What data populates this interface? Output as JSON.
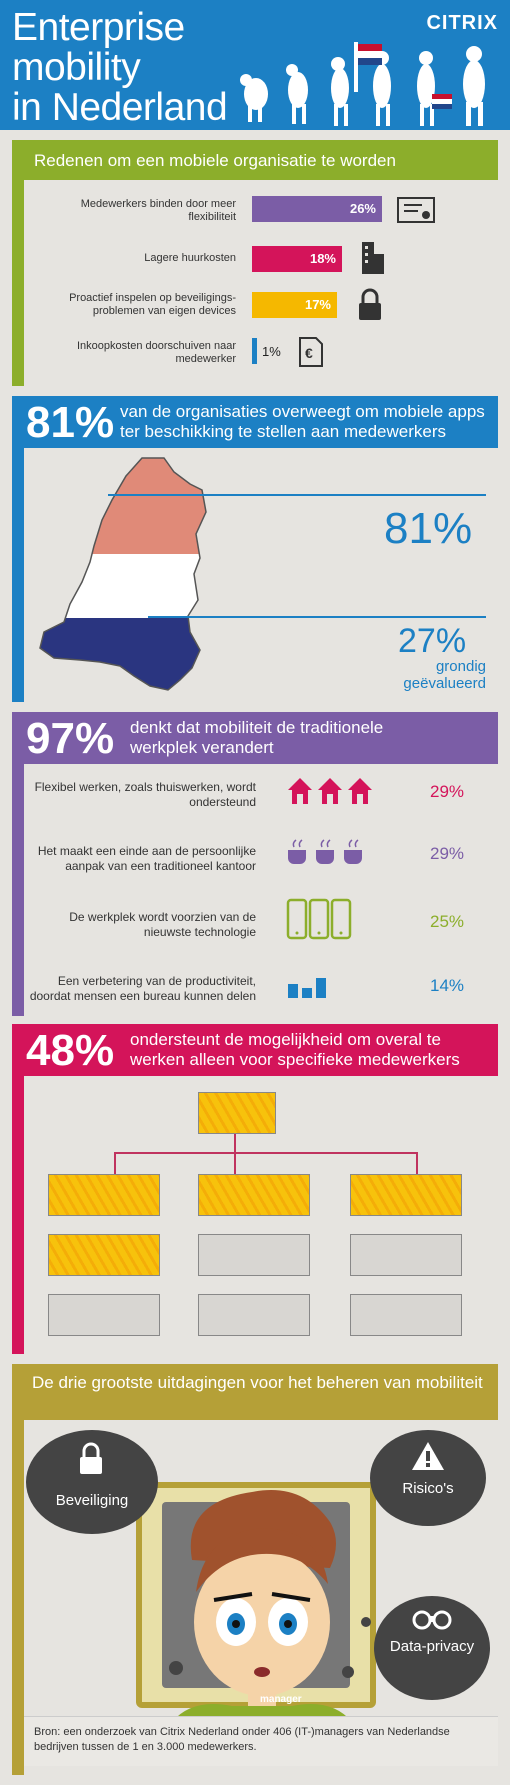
{
  "header": {
    "title_line1": "Enterprise",
    "title_line2": "mobility",
    "title_line3": "in Nederland",
    "logo": "CITRIX",
    "bg_color": "#1c80c4"
  },
  "section1": {
    "heading": "Redenen om een mobiele organisatie te worden",
    "accent": "#8cae2b",
    "rows": [
      {
        "label": "Medewerkers binden door meer flexibiliteit",
        "value": "26%",
        "pct": 26,
        "color": "#7b5da6",
        "icon": "certificate-icon"
      },
      {
        "label": "Lagere huurkosten",
        "value": "18%",
        "pct": 18,
        "color": "#d4145a",
        "icon": "building-icon"
      },
      {
        "label": "Proactief inspelen op beveiligings-problemen van eigen devices",
        "value": "17%",
        "pct": 17,
        "color": "#f5b800",
        "icon": "padlock-icon"
      },
      {
        "label": "Inkoopkosten doorschuiven naar medewerker",
        "value": "1%",
        "pct": 1,
        "color": "#1c80c4",
        "icon": "euro-document-icon"
      }
    ]
  },
  "section2": {
    "big": "81%",
    "text": "van de organisaties overweegt om mobiele apps ter beschikking te stellen aan medewerkers",
    "accent": "#1c80c4",
    "stat1": "81%",
    "stat2": "27%",
    "stat2_label": "grondig geëvalueerd",
    "stat1_pct": 81,
    "stat2_pct": 27
  },
  "section3": {
    "big": "97%",
    "text": "denkt dat mobiliteit de traditionele werkplek verandert",
    "accent": "#7b5da6",
    "rows": [
      {
        "label": "Flexibel werken, zoals thuiswerken, wordt ondersteund",
        "value": "29%",
        "color": "#d4145a",
        "icon": "house-icon"
      },
      {
        "label": "Het maakt een einde aan de persoonlijke aanpak van een traditioneel kantoor",
        "value": "29%",
        "color": "#7b5da6",
        "icon": "coffee-cup-icon"
      },
      {
        "label": "De werkplek wordt voorzien van de nieuwste technologie",
        "value": "25%",
        "color": "#8cae2b",
        "icon": "smartphone-icon"
      },
      {
        "label": "Een verbetering van de productiviteit, doordat mensen een bureau kunnen delen",
        "value": "14%",
        "color": "#1c80c4",
        "icon": "desk-icon"
      }
    ]
  },
  "section4": {
    "big": "48%",
    "text": "ondersteunt de mogelijkheid om overal te werken alleen voor specifieke medewerkers",
    "accent": "#d4145a"
  },
  "section5": {
    "heading": "De drie grootste uitdagingen voor het beheren van mobiliteit",
    "accent": "#b5a037",
    "cloud1": "Beveiliging",
    "cloud2": "Risico's",
    "cloud3": "Data-privacy",
    "shirt": "manager"
  },
  "footer": {
    "text": "Bron: een onderzoek van Citrix Nederland onder 406 (IT-)managers van Nederlandse bedrijven tussen de 1 en 3.000 medewerkers."
  }
}
